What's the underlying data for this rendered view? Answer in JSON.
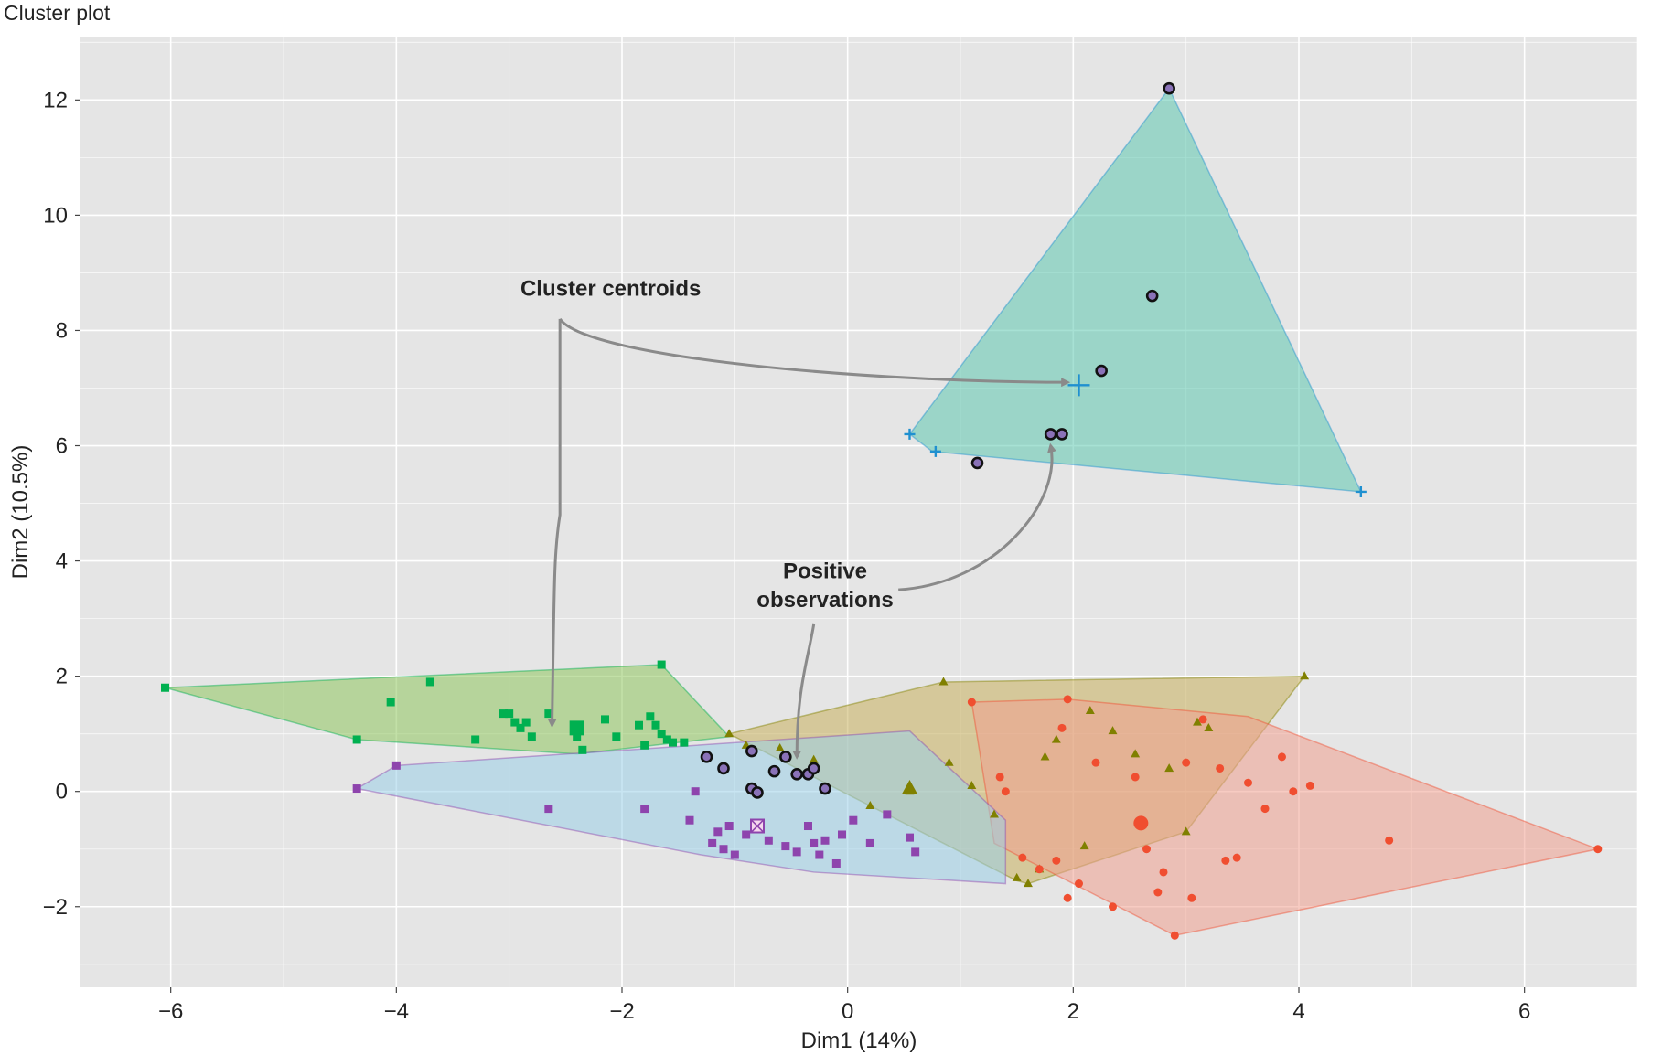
{
  "chart_data": {
    "type": "scatter",
    "title": "Cluster plot",
    "xlabel": "Dim1 (14%)",
    "ylabel": "Dim2 (10.5%)",
    "xlim": [
      -6.8,
      7.0
    ],
    "ylim": [
      -3.4,
      13.1
    ],
    "xticks": [
      -6,
      -4,
      -2,
      0,
      2,
      4,
      6
    ],
    "yticks": [
      -2,
      0,
      2,
      4,
      6,
      8,
      10,
      12
    ],
    "grid": true,
    "legend": "none",
    "background": "#e5e5e5",
    "series": [
      {
        "cluster": "1",
        "color": "#00b050",
        "fill": "#8fc75f",
        "marker": "square",
        "hull": [
          [
            -6.05,
            1.8
          ],
          [
            -1.65,
            2.2
          ],
          [
            -1.05,
            0.95
          ],
          [
            -2.4,
            0.65
          ],
          [
            -4.35,
            0.9
          ]
        ],
        "points": [
          [
            -6.05,
            1.8
          ],
          [
            -4.35,
            0.9
          ],
          [
            -4.05,
            1.55
          ],
          [
            -3.7,
            1.9
          ],
          [
            -3.3,
            0.9
          ],
          [
            -3.05,
            1.35
          ],
          [
            -3.0,
            1.35
          ],
          [
            -2.95,
            1.2
          ],
          [
            -2.9,
            1.1
          ],
          [
            -2.85,
            1.2
          ],
          [
            -2.8,
            0.95
          ],
          [
            -2.65,
            1.35
          ],
          [
            -2.4,
            1.15
          ],
          [
            -2.4,
            0.95
          ],
          [
            -2.35,
            0.72
          ],
          [
            -2.15,
            1.25
          ],
          [
            -2.05,
            0.95
          ],
          [
            -1.85,
            1.15
          ],
          [
            -1.8,
            0.8
          ],
          [
            -1.75,
            1.3
          ],
          [
            -1.7,
            1.15
          ],
          [
            -1.65,
            2.2
          ],
          [
            -1.65,
            1.0
          ],
          [
            -1.6,
            0.9
          ],
          [
            -1.55,
            0.85
          ],
          [
            -1.45,
            0.85
          ]
        ]
      },
      {
        "cluster": "2",
        "color": "#808000",
        "fill": "#c8b15c",
        "marker": "triangle",
        "hull": [
          [
            -1.05,
            1.0
          ],
          [
            0.85,
            1.9
          ],
          [
            4.05,
            2.0
          ],
          [
            3.0,
            -0.7
          ],
          [
            1.6,
            -1.6
          ],
          [
            1.5,
            -1.55
          ]
        ],
        "points": [
          [
            -1.05,
            1.0
          ],
          [
            -0.9,
            0.8
          ],
          [
            -0.6,
            0.75
          ],
          [
            -0.3,
            0.55
          ],
          [
            0.2,
            -0.25
          ],
          [
            0.55,
            0.0
          ],
          [
            0.85,
            1.9
          ],
          [
            0.9,
            0.5
          ],
          [
            1.1,
            0.1
          ],
          [
            1.3,
            -0.4
          ],
          [
            1.5,
            -1.5
          ],
          [
            1.6,
            -1.6
          ],
          [
            1.7,
            -1.35
          ],
          [
            1.75,
            0.6
          ],
          [
            1.85,
            0.9
          ],
          [
            2.1,
            -0.95
          ],
          [
            2.15,
            1.4
          ],
          [
            2.35,
            1.05
          ],
          [
            2.55,
            0.65
          ],
          [
            2.85,
            0.4
          ],
          [
            3.0,
            -0.7
          ],
          [
            3.1,
            1.2
          ],
          [
            3.2,
            1.1
          ],
          [
            4.05,
            2.0
          ]
        ]
      },
      {
        "cluster": "3",
        "color": "#f04e30",
        "fill": "#f0a090",
        "marker": "circle",
        "hull": [
          [
            1.1,
            1.55
          ],
          [
            1.95,
            1.6
          ],
          [
            3.55,
            1.3
          ],
          [
            6.65,
            -1.0
          ],
          [
            2.9,
            -2.5
          ],
          [
            1.3,
            -0.9
          ]
        ],
        "points": [
          [
            1.1,
            1.55
          ],
          [
            1.35,
            0.25
          ],
          [
            1.4,
            0.0
          ],
          [
            1.55,
            -1.15
          ],
          [
            1.7,
            -1.35
          ],
          [
            1.85,
            -1.2
          ],
          [
            1.9,
            1.1
          ],
          [
            1.95,
            1.6
          ],
          [
            1.95,
            -1.85
          ],
          [
            2.05,
            -1.6
          ],
          [
            2.2,
            0.5
          ],
          [
            2.35,
            -2.0
          ],
          [
            2.55,
            0.25
          ],
          [
            2.65,
            -1.0
          ],
          [
            2.75,
            -1.75
          ],
          [
            2.8,
            -1.4
          ],
          [
            2.9,
            -2.5
          ],
          [
            3.0,
            0.5
          ],
          [
            3.05,
            -1.85
          ],
          [
            3.15,
            1.25
          ],
          [
            3.3,
            0.4
          ],
          [
            3.35,
            -1.2
          ],
          [
            3.45,
            -1.15
          ],
          [
            3.55,
            0.15
          ],
          [
            3.7,
            -0.3
          ],
          [
            3.85,
            0.6
          ],
          [
            3.95,
            0.0
          ],
          [
            4.1,
            0.1
          ],
          [
            4.8,
            -0.85
          ],
          [
            6.65,
            -1.0
          ]
        ]
      },
      {
        "cluster": "4",
        "color": "#8e44ad",
        "fill": "#9ad0e8",
        "marker": "square",
        "hull": [
          [
            -4.35,
            0.05
          ],
          [
            -4.0,
            0.45
          ],
          [
            0.55,
            1.05
          ],
          [
            1.4,
            -0.5
          ],
          [
            1.4,
            -1.6
          ],
          [
            -0.3,
            -1.4
          ],
          [
            -1.3,
            -1.1
          ]
        ],
        "points": [
          [
            -4.35,
            0.05
          ],
          [
            -4.0,
            0.45
          ],
          [
            -2.65,
            -0.3
          ],
          [
            -1.8,
            -0.3
          ],
          [
            -1.4,
            -0.5
          ],
          [
            -1.35,
            0.0
          ],
          [
            -1.2,
            -0.9
          ],
          [
            -1.15,
            -0.7
          ],
          [
            -1.1,
            -1.0
          ],
          [
            -1.05,
            -0.6
          ],
          [
            -1.0,
            -1.1
          ],
          [
            -0.9,
            -0.75
          ],
          [
            -0.8,
            -0.55
          ],
          [
            -0.7,
            -0.85
          ],
          [
            -0.55,
            -0.95
          ],
          [
            -0.45,
            -1.05
          ],
          [
            -0.35,
            -0.6
          ],
          [
            -0.3,
            -0.9
          ],
          [
            -0.25,
            -1.1
          ],
          [
            -0.2,
            -0.85
          ],
          [
            -0.1,
            -1.25
          ],
          [
            -0.05,
            -0.75
          ],
          [
            0.05,
            -0.5
          ],
          [
            0.2,
            -0.9
          ],
          [
            0.35,
            -0.4
          ],
          [
            0.55,
            -0.8
          ],
          [
            0.6,
            -1.05
          ]
        ]
      },
      {
        "cluster": "5",
        "color": "#1f90d0",
        "fill": "#5ec8b0",
        "marker": "plus",
        "hull": [
          [
            0.55,
            6.2
          ],
          [
            0.75,
            5.9
          ],
          [
            4.55,
            5.2
          ],
          [
            2.85,
            12.2
          ]
        ],
        "points": [
          [
            0.55,
            6.2
          ],
          [
            0.78,
            5.9
          ],
          [
            4.55,
            5.2
          ]
        ]
      }
    ],
    "positive_observations": [
      [
        2.85,
        12.2
      ],
      [
        2.7,
        8.6
      ],
      [
        2.25,
        7.3
      ],
      [
        1.8,
        6.2
      ],
      [
        1.9,
        6.2
      ],
      [
        1.15,
        5.7
      ],
      [
        -1.25,
        0.6
      ],
      [
        -1.1,
        0.4
      ],
      [
        -0.85,
        0.7
      ],
      [
        -0.55,
        0.6
      ],
      [
        -0.65,
        0.35
      ],
      [
        -0.45,
        0.3
      ],
      [
        -0.35,
        0.3
      ],
      [
        -0.3,
        0.4
      ],
      [
        -0.2,
        0.05
      ],
      [
        -0.85,
        0.05
      ],
      [
        -0.8,
        -0.02
      ]
    ],
    "centroids": [
      {
        "cluster": "5",
        "marker": "large-plus",
        "x": 2.05,
        "y": 7.05,
        "color": "#1f90d0"
      },
      {
        "cluster": "1",
        "marker": "large-square",
        "x": -2.4,
        "y": 1.1,
        "color": "#00b050"
      },
      {
        "cluster": "2",
        "marker": "large-triangle",
        "x": 0.55,
        "y": 0.05,
        "color": "#808000"
      },
      {
        "cluster": "3",
        "marker": "large-circle",
        "x": 2.6,
        "y": -0.55,
        "color": "#f04e30"
      },
      {
        "cluster": "4",
        "marker": "large-square",
        "x": -0.8,
        "y": -0.6,
        "color": "#8e44ad"
      }
    ],
    "annotations": [
      {
        "text": "Cluster centroids",
        "x": -2.1,
        "y": 8.6
      },
      {
        "text": "Positive",
        "x": -0.2,
        "y": 3.7
      },
      {
        "text": "observations",
        "x": -0.2,
        "y": 3.2
      }
    ]
  }
}
